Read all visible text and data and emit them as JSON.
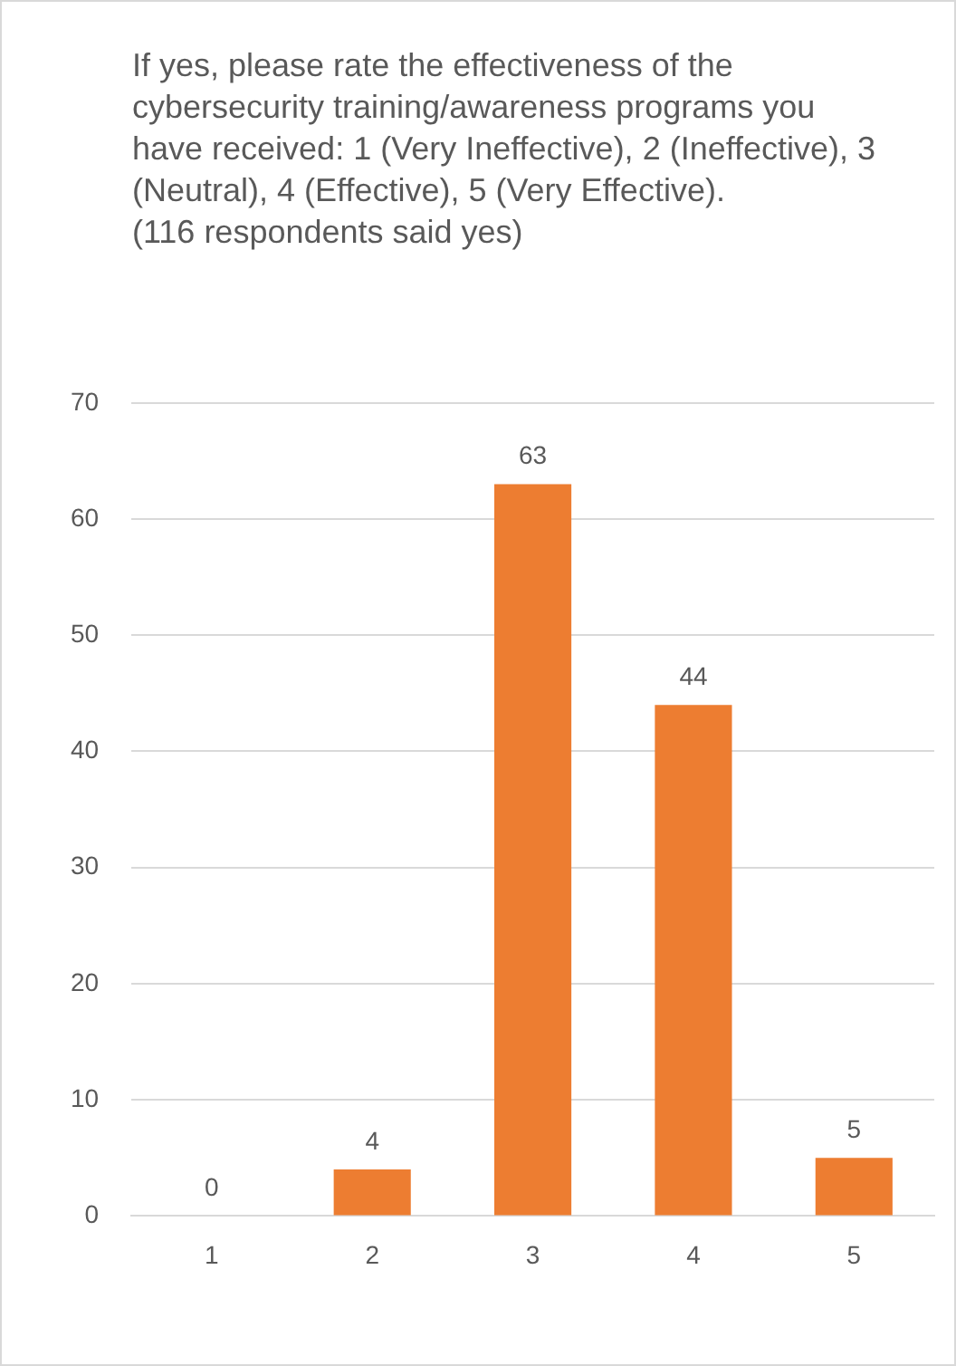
{
  "chart_data": {
    "type": "bar",
    "title": "If yes, please rate the effectiveness of the cybersecurity training/awareness programs you have received: 1 (Very Ineffective), 2 (Ineffective), 3 (Neutral), 4 (Effective), 5 (Very Effective).",
    "subtitle": "(116 respondents said yes)",
    "categories": [
      "1",
      "2",
      "3",
      "4",
      "5"
    ],
    "values": [
      0,
      4,
      63,
      44,
      5
    ],
    "color": "#ed7d31",
    "ylim": [
      0,
      70
    ],
    "yticks": [
      0,
      10,
      20,
      30,
      40,
      50,
      60,
      70
    ],
    "grid": "y",
    "data_labels": true,
    "legend": false
  }
}
